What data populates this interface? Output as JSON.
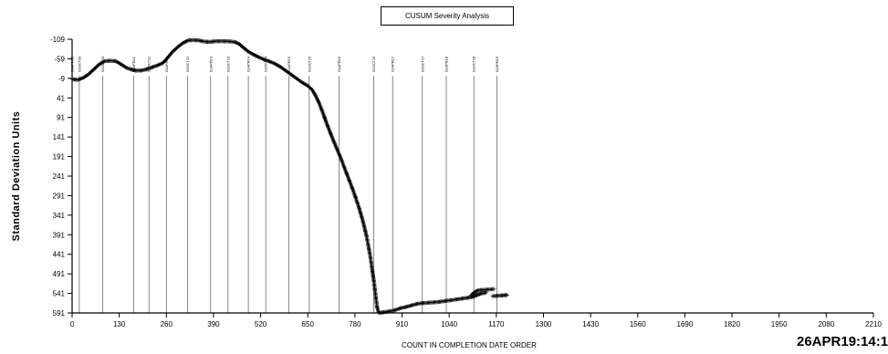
{
  "chart_data": {
    "type": "line",
    "title": "CUSUM Severity Analysis",
    "xlabel": "COUNT IN COMPLETION DATE ORDER",
    "ylabel": "Standard Deviation Units",
    "xlim": [
      0,
      2210
    ],
    "ylim": [
      -109,
      591
    ],
    "y_reversed": true,
    "x_ticks": [
      0,
      130,
      260,
      390,
      520,
      650,
      780,
      910,
      1040,
      1170,
      1300,
      1430,
      1560,
      1690,
      1820,
      1950,
      2080,
      2210
    ],
    "y_ticks": [
      -109,
      -59,
      -9,
      41,
      91,
      141,
      191,
      241,
      291,
      341,
      391,
      441,
      491,
      541,
      591
    ],
    "marker": "plus",
    "period_lines": [
      {
        "label": "01APR09",
        "x": 0
      },
      {
        "label": "01OCT09",
        "x": 20
      },
      {
        "label": "01OCT10",
        "x": 84
      },
      {
        "label": "01APR11",
        "x": 170
      },
      {
        "label": "01OCT11",
        "x": 212
      },
      {
        "label": "01APR12",
        "x": 260
      },
      {
        "label": "01OCT12",
        "x": 318
      },
      {
        "label": "01APR13",
        "x": 382
      },
      {
        "label": "01OCT13",
        "x": 430
      },
      {
        "label": "01APR14",
        "x": 486
      },
      {
        "label": "01OCT14",
        "x": 534
      },
      {
        "label": "01APR15",
        "x": 598
      },
      {
        "label": "01OCT15",
        "x": 654
      },
      {
        "label": "01APR16",
        "x": 736
      },
      {
        "label": "01OCT16",
        "x": 832
      },
      {
        "label": "01APR17",
        "x": 884
      },
      {
        "label": "01OCT17",
        "x": 966
      },
      {
        "label": "01APR18",
        "x": 1032
      },
      {
        "label": "01OCT18",
        "x": 1108
      },
      {
        "label": "01APR19",
        "x": 1172
      }
    ],
    "series": [
      {
        "segments": [
          [
            [
              0,
              -7
            ],
            [
              15,
              -5
            ],
            [
              30,
              -10
            ],
            [
              45,
              -19
            ],
            [
              60,
              -32
            ],
            [
              75,
              -45
            ],
            [
              90,
              -53
            ],
            [
              105,
              -54
            ],
            [
              120,
              -53
            ],
            [
              130,
              -48
            ],
            [
              140,
              -42
            ],
            [
              150,
              -36
            ],
            [
              162,
              -32
            ],
            [
              175,
              -29
            ],
            [
              190,
              -29
            ],
            [
              205,
              -32
            ],
            [
              220,
              -37
            ],
            [
              235,
              -42
            ],
            [
              250,
              -48
            ],
            [
              262,
              -60
            ],
            [
              275,
              -75
            ],
            [
              290,
              -88
            ],
            [
              305,
              -99
            ],
            [
              320,
              -106
            ],
            [
              335,
              -107
            ],
            [
              350,
              -106
            ],
            [
              365,
              -103
            ],
            [
              380,
              -102
            ],
            [
              395,
              -104
            ],
            [
              410,
              -104
            ],
            [
              425,
              -104
            ],
            [
              440,
              -103
            ],
            [
              452,
              -101
            ],
            [
              462,
              -96
            ],
            [
              472,
              -88
            ],
            [
              485,
              -78
            ],
            [
              500,
              -70
            ],
            [
              515,
              -63
            ],
            [
              530,
              -57
            ],
            [
              545,
              -52
            ],
            [
              560,
              -46
            ],
            [
              575,
              -38
            ],
            [
              590,
              -28
            ],
            [
              605,
              -18
            ],
            [
              620,
              -8
            ],
            [
              635,
              2
            ],
            [
              650,
              10
            ],
            [
              662,
              20
            ],
            [
              672,
              36
            ],
            [
              682,
              56
            ],
            [
              692,
              80
            ],
            [
              702,
              106
            ],
            [
              712,
              130
            ],
            [
              722,
              153
            ],
            [
              732,
              175
            ],
            [
              742,
              197
            ],
            [
              752,
              222
            ],
            [
              762,
              246
            ],
            [
              772,
              270
            ],
            [
              782,
              296
            ],
            [
              792,
              324
            ],
            [
              802,
              356
            ],
            [
              812,
              394
            ],
            [
              822,
              444
            ],
            [
              832,
              508
            ],
            [
              841,
              576
            ],
            [
              846,
              591
            ],
            [
              860,
              589
            ],
            [
              875,
              587
            ],
            [
              890,
              584
            ],
            [
              905,
              579
            ],
            [
              920,
              576
            ],
            [
              935,
              572
            ],
            [
              950,
              568
            ],
            [
              965,
              566
            ],
            [
              980,
              565
            ],
            [
              995,
              564
            ],
            [
              1010,
              563
            ],
            [
              1025,
              561
            ],
            [
              1040,
              559
            ],
            [
              1055,
              557
            ],
            [
              1070,
              555
            ],
            [
              1085,
              553
            ],
            [
              1100,
              551
            ],
            [
              1110,
              548
            ],
            [
              1120,
              544
            ],
            [
              1130,
              541
            ],
            [
              1142,
              539
            ]
          ],
          [
            [
              1100,
              546
            ],
            [
              1110,
              538
            ],
            [
              1120,
              533
            ],
            [
              1135,
              532
            ],
            [
              1150,
              531
            ],
            [
              1163,
              530
            ]
          ],
          [
            [
              1160,
              548
            ],
            [
              1175,
              547
            ],
            [
              1190,
              546
            ],
            [
              1200,
              545
            ]
          ]
        ]
      }
    ]
  },
  "timestamp": "26APR19:14:1"
}
